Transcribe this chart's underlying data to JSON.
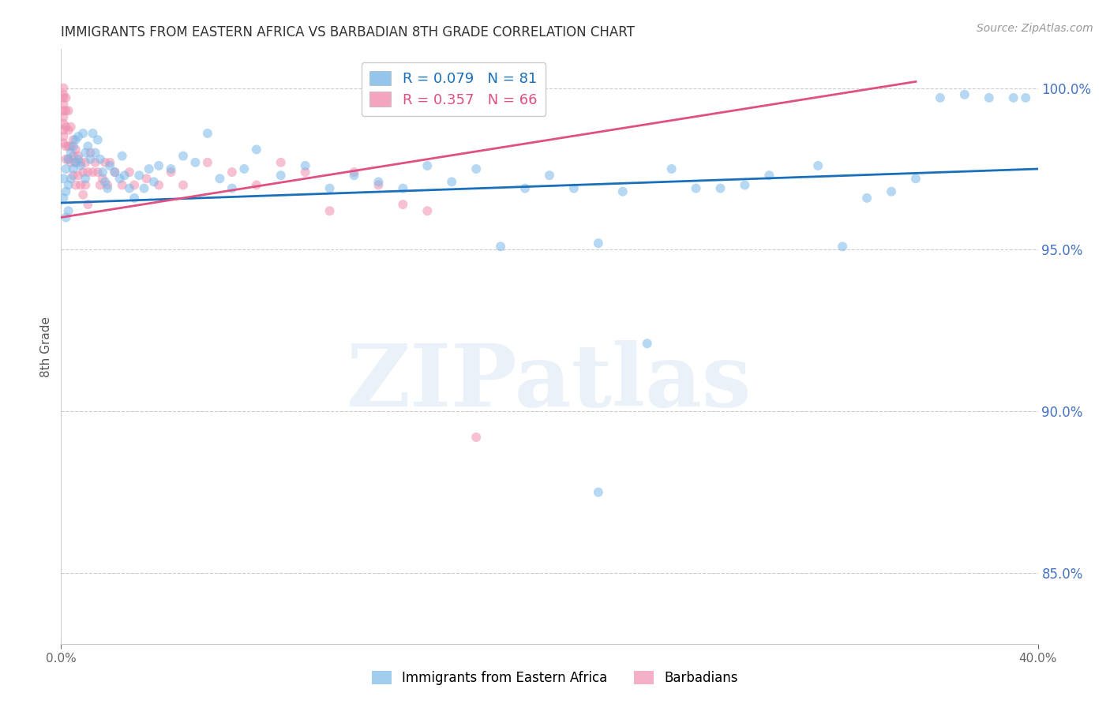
{
  "title": "IMMIGRANTS FROM EASTERN AFRICA VS BARBADIAN 8TH GRADE CORRELATION CHART",
  "source": "Source: ZipAtlas.com",
  "ylabel": "8th Grade",
  "yaxis_labels": [
    "100.0%",
    "95.0%",
    "90.0%",
    "85.0%"
  ],
  "yaxis_values": [
    1.0,
    0.95,
    0.9,
    0.85
  ],
  "legend_entries": [
    {
      "label": "R = 0.079   N = 81",
      "color": "#7ab8e8"
    },
    {
      "label": "R = 0.357   N = 66",
      "color": "#f08faf"
    }
  ],
  "legend_labels": [
    "Immigrants from Eastern Africa",
    "Barbadians"
  ],
  "watermark": "ZIPatlas",
  "xlim": [
    0.0,
    0.4
  ],
  "ylim": [
    0.828,
    1.012
  ],
  "blue_scatter_x": [
    0.001,
    0.001,
    0.002,
    0.002,
    0.002,
    0.003,
    0.003,
    0.003,
    0.004,
    0.004,
    0.005,
    0.005,
    0.006,
    0.006,
    0.007,
    0.007,
    0.008,
    0.009,
    0.01,
    0.01,
    0.011,
    0.012,
    0.013,
    0.014,
    0.015,
    0.016,
    0.017,
    0.018,
    0.019,
    0.02,
    0.022,
    0.024,
    0.025,
    0.026,
    0.028,
    0.03,
    0.032,
    0.034,
    0.036,
    0.038,
    0.04,
    0.045,
    0.05,
    0.055,
    0.06,
    0.065,
    0.07,
    0.075,
    0.08,
    0.09,
    0.1,
    0.11,
    0.12,
    0.13,
    0.14,
    0.15,
    0.16,
    0.17,
    0.18,
    0.19,
    0.2,
    0.21,
    0.22,
    0.23,
    0.25,
    0.27,
    0.29,
    0.31,
    0.33,
    0.35,
    0.36,
    0.37,
    0.38,
    0.39,
    0.395,
    0.34,
    0.32,
    0.28,
    0.26,
    0.24,
    0.22
  ],
  "blue_scatter_y": [
    0.972,
    0.966,
    0.975,
    0.968,
    0.96,
    0.978,
    0.97,
    0.962,
    0.98,
    0.972,
    0.982,
    0.975,
    0.984,
    0.977,
    0.985,
    0.978,
    0.976,
    0.986,
    0.98,
    0.972,
    0.982,
    0.978,
    0.986,
    0.98,
    0.984,
    0.978,
    0.974,
    0.971,
    0.969,
    0.976,
    0.974,
    0.972,
    0.979,
    0.973,
    0.969,
    0.966,
    0.973,
    0.969,
    0.975,
    0.971,
    0.976,
    0.975,
    0.979,
    0.977,
    0.986,
    0.972,
    0.969,
    0.975,
    0.981,
    0.973,
    0.976,
    0.969,
    0.973,
    0.971,
    0.969,
    0.976,
    0.971,
    0.975,
    0.951,
    0.969,
    0.973,
    0.969,
    0.952,
    0.968,
    0.975,
    0.969,
    0.973,
    0.976,
    0.966,
    0.972,
    0.997,
    0.998,
    0.997,
    0.997,
    0.997,
    0.968,
    0.951,
    0.97,
    0.969,
    0.921,
    0.875
  ],
  "pink_scatter_x": [
    0.001,
    0.001,
    0.001,
    0.001,
    0.001,
    0.001,
    0.001,
    0.001,
    0.001,
    0.001,
    0.002,
    0.002,
    0.002,
    0.002,
    0.002,
    0.003,
    0.003,
    0.003,
    0.003,
    0.004,
    0.004,
    0.004,
    0.005,
    0.005,
    0.005,
    0.006,
    0.006,
    0.006,
    0.007,
    0.007,
    0.008,
    0.008,
    0.009,
    0.009,
    0.01,
    0.01,
    0.011,
    0.011,
    0.012,
    0.013,
    0.014,
    0.015,
    0.016,
    0.017,
    0.018,
    0.019,
    0.02,
    0.022,
    0.025,
    0.028,
    0.03,
    0.035,
    0.04,
    0.045,
    0.05,
    0.06,
    0.07,
    0.08,
    0.09,
    0.1,
    0.11,
    0.12,
    0.13,
    0.14,
    0.15,
    0.17
  ],
  "pink_scatter_y": [
    1.0,
    0.998,
    0.997,
    0.995,
    0.993,
    0.991,
    0.989,
    0.987,
    0.985,
    0.983,
    0.997,
    0.993,
    0.988,
    0.982,
    0.978,
    0.993,
    0.987,
    0.982,
    0.978,
    0.988,
    0.982,
    0.977,
    0.984,
    0.979,
    0.973,
    0.981,
    0.977,
    0.97,
    0.979,
    0.973,
    0.977,
    0.97,
    0.974,
    0.967,
    0.977,
    0.97,
    0.974,
    0.964,
    0.98,
    0.974,
    0.977,
    0.974,
    0.97,
    0.972,
    0.977,
    0.97,
    0.977,
    0.974,
    0.97,
    0.974,
    0.97,
    0.972,
    0.97,
    0.974,
    0.97,
    0.977,
    0.974,
    0.97,
    0.977,
    0.974,
    0.962,
    0.974,
    0.97,
    0.964,
    0.962,
    0.892
  ],
  "blue_line_x": [
    0.0,
    0.4
  ],
  "blue_line_y": [
    0.9645,
    0.975
  ],
  "pink_line_x": [
    0.0,
    0.35
  ],
  "pink_line_y": [
    0.96,
    1.002
  ],
  "background_color": "#ffffff",
  "scatter_alpha": 0.55,
  "scatter_size": 75,
  "grid_color": "#cccccc",
  "blue_color": "#7ab8e8",
  "pink_color": "#f08faf",
  "blue_line_color": "#1a6fba",
  "pink_line_color": "#e05080",
  "title_color": "#333333",
  "right_axis_color": "#4472c4",
  "watermark_color": "#c8d8f0",
  "watermark_alpha": 0.35,
  "xtick_positions": [
    0.0,
    0.4
  ],
  "xtick_labels": [
    "0.0%",
    "40.0%"
  ]
}
